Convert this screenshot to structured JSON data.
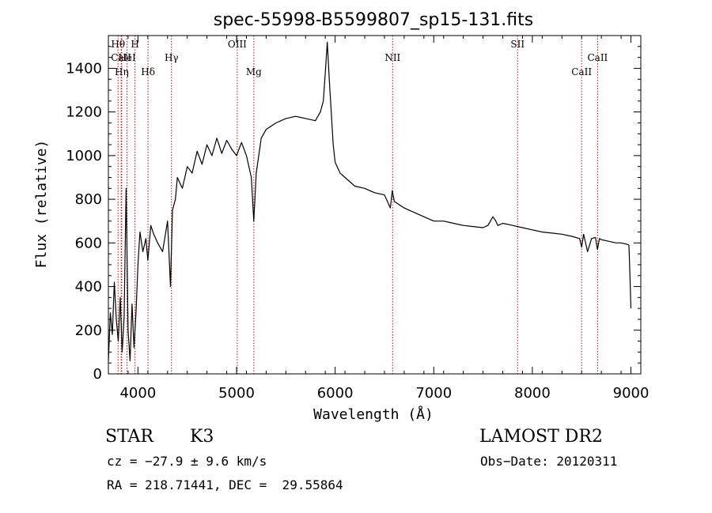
{
  "chart_data": {
    "type": "line",
    "title": "spec-55998-B5599807_sp15-131.fits",
    "xlabel": "Wavelength (Å)",
    "ylabel": "Flux (relative)",
    "xlim": [
      3700,
      9100
    ],
    "ylim": [
      0,
      1550
    ],
    "x_ticks": [
      4000,
      5000,
      6000,
      7000,
      8000,
      9000
    ],
    "y_ticks": [
      0,
      200,
      400,
      600,
      800,
      1000,
      1200,
      1400
    ],
    "x_tick_labels": [
      "4000",
      "5000",
      "6000",
      "7000",
      "8000",
      "9000"
    ],
    "y_tick_labels": [
      "0",
      "200",
      "400",
      "600",
      "800",
      "1000",
      "1200",
      "1400"
    ],
    "series": [
      {
        "x": [
          3700,
          3720,
          3740,
          3760,
          3780,
          3800,
          3820,
          3840,
          3860,
          3880,
          3900,
          3920,
          3940,
          3960,
          3980,
          4000,
          4020,
          4050,
          4080,
          4100,
          4130,
          4160,
          4200,
          4250,
          4300,
          4330,
          4350,
          4380,
          4400,
          4450,
          4500,
          4550,
          4600,
          4650,
          4700,
          4750,
          4800,
          4850,
          4900,
          4950,
          5000,
          5050,
          5100,
          5150,
          5175,
          5200,
          5250,
          5300,
          5400,
          5500,
          5600,
          5700,
          5800,
          5850,
          5880,
          5900,
          5920,
          5940,
          5960,
          5980,
          6000,
          6050,
          6100,
          6150,
          6200,
          6300,
          6400,
          6500,
          6560,
          6580,
          6600,
          6700,
          6800,
          6900,
          7000,
          7100,
          7200,
          7300,
          7400,
          7500,
          7550,
          7600,
          7630,
          7650,
          7700,
          7800,
          7900,
          8000,
          8100,
          8200,
          8300,
          8400,
          8480,
          8500,
          8520,
          8540,
          8560,
          8600,
          8640,
          8660,
          8680,
          8700,
          8750,
          8800,
          8850,
          8900,
          8950,
          8980,
          8990,
          9000
        ],
        "y": [
          60,
          280,
          180,
          420,
          250,
          150,
          350,
          100,
          260,
          850,
          200,
          60,
          320,
          120,
          280,
          500,
          650,
          560,
          620,
          520,
          680,
          640,
          600,
          560,
          700,
          400,
          750,
          800,
          900,
          850,
          950,
          920,
          1020,
          960,
          1050,
          1000,
          1080,
          1010,
          1070,
          1030,
          1000,
          1060,
          1000,
          900,
          700,
          920,
          1080,
          1120,
          1150,
          1170,
          1180,
          1170,
          1160,
          1200,
          1250,
          1380,
          1520,
          1350,
          1200,
          1050,
          970,
          920,
          900,
          880,
          860,
          850,
          830,
          820,
          760,
          840,
          790,
          760,
          740,
          720,
          700,
          700,
          690,
          680,
          675,
          670,
          680,
          720,
          700,
          680,
          690,
          680,
          670,
          660,
          650,
          645,
          640,
          630,
          620,
          580,
          640,
          600,
          560,
          620,
          625,
          570,
          620,
          615,
          610,
          605,
          600,
          600,
          595,
          590,
          450,
          300
        ]
      }
    ],
    "spectral_lines": [
      {
        "name": "Hθ",
        "wavelength": 3798,
        "row": 0
      },
      {
        "name": "CaII",
        "wavelength": 3830,
        "row": 1
      },
      {
        "name": "Hη",
        "wavelength": 3835,
        "row": 2
      },
      {
        "name": "HeI",
        "wavelength": 3889,
        "row": 1
      },
      {
        "name": "H",
        "wavelength": 3970,
        "row": 0
      },
      {
        "name": "Hδ",
        "wavelength": 4102,
        "row": 2
      },
      {
        "name": "Hγ",
        "wavelength": 4340,
        "row": 1
      },
      {
        "name": "OIII",
        "wavelength": 5007,
        "row": 0
      },
      {
        "name": "Mg",
        "wavelength": 5175,
        "row": 2
      },
      {
        "name": "NII",
        "wavelength": 6583,
        "row": 1
      },
      {
        "name": "SII",
        "wavelength": 7850,
        "row": 0
      },
      {
        "name": "CaII",
        "wavelength": 8500,
        "row": 2
      },
      {
        "name": "CaII",
        "wavelength": 8662,
        "row": 1
      }
    ],
    "line_color": "#000000",
    "marker_color": "#cc0000",
    "grid": false
  },
  "info": {
    "class": "STAR",
    "subclass": "K3",
    "survey": "LAMOST DR2",
    "cz": "cz = −27.9 ± 9.6 km/s",
    "obs_date": "Obs−Date: 20120311",
    "coords": "RA = 218.71441, DEC =  29.55864"
  }
}
